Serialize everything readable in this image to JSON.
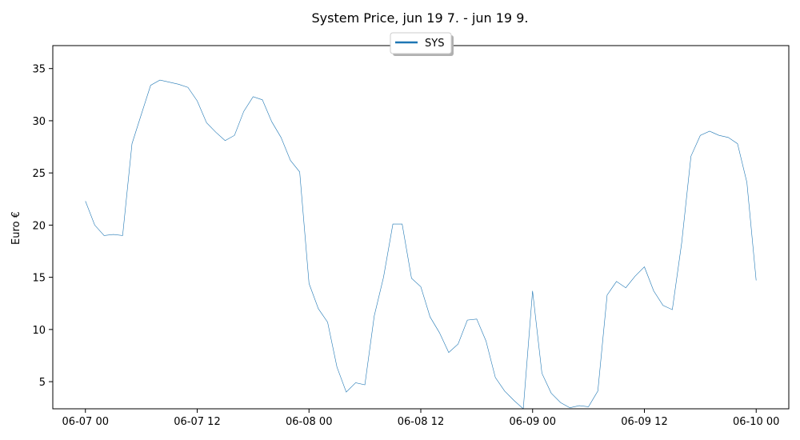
{
  "chart_data": {
    "type": "line",
    "title": "System Price, jun 19 7. - jun 19 9.",
    "xlabel": "",
    "ylabel": "Euro €",
    "x_range_hours": [
      -3.5,
      75.5
    ],
    "ylim": [
      2.4,
      37.2
    ],
    "x_ticks": [
      {
        "hours": 0,
        "label": "06-07 00"
      },
      {
        "hours": 12,
        "label": "06-07 12"
      },
      {
        "hours": 24,
        "label": "06-08 00"
      },
      {
        "hours": 36,
        "label": "06-08 12"
      },
      {
        "hours": 48,
        "label": "06-09 00"
      },
      {
        "hours": 60,
        "label": "06-09 12"
      },
      {
        "hours": 72,
        "label": "06-10 00"
      }
    ],
    "y_ticks": [
      5,
      10,
      15,
      20,
      25,
      30,
      35
    ],
    "grid": false,
    "legend": "top-center",
    "series": [
      {
        "name": "SYS",
        "color": "#1f77b4",
        "x_hours": [
          0,
          1,
          2,
          3,
          4,
          5,
          6,
          7,
          8,
          9,
          10,
          11,
          12,
          13,
          14,
          15,
          16,
          17,
          18,
          19,
          20,
          21,
          22,
          23,
          24,
          25,
          26,
          27,
          28,
          29,
          30,
          31,
          32,
          33,
          34,
          35,
          36,
          37,
          38,
          39,
          40,
          41,
          42,
          43,
          44,
          45,
          46,
          47,
          48,
          49,
          50,
          51,
          52,
          53,
          54,
          55,
          56,
          57,
          58,
          59,
          60,
          61,
          62,
          63,
          64,
          65,
          66,
          67,
          68,
          69,
          70,
          71,
          72
        ],
        "values": [
          22.3,
          20.0,
          19.0,
          19.1,
          19.0,
          27.8,
          30.6,
          33.4,
          33.9,
          33.7,
          33.5,
          33.2,
          31.9,
          29.8,
          28.9,
          28.1,
          28.6,
          30.9,
          32.3,
          32.0,
          29.9,
          28.4,
          26.2,
          25.1,
          14.4,
          12.0,
          10.7,
          6.4,
          4.0,
          4.9,
          4.7,
          11.3,
          15.0,
          20.1,
          20.1,
          14.9,
          14.1,
          11.2,
          9.7,
          7.8,
          8.6,
          10.9,
          11.0,
          8.9,
          5.4,
          4.1,
          3.2,
          2.4,
          13.7,
          5.8,
          3.9,
          3.0,
          2.5,
          2.7,
          2.6,
          4.1,
          13.3,
          14.6,
          14.0,
          15.1,
          16.0,
          13.7,
          12.3,
          11.9,
          18.3,
          26.6,
          28.6,
          29.0,
          28.6,
          28.4,
          27.8,
          24.1,
          14.7
        ]
      }
    ]
  }
}
